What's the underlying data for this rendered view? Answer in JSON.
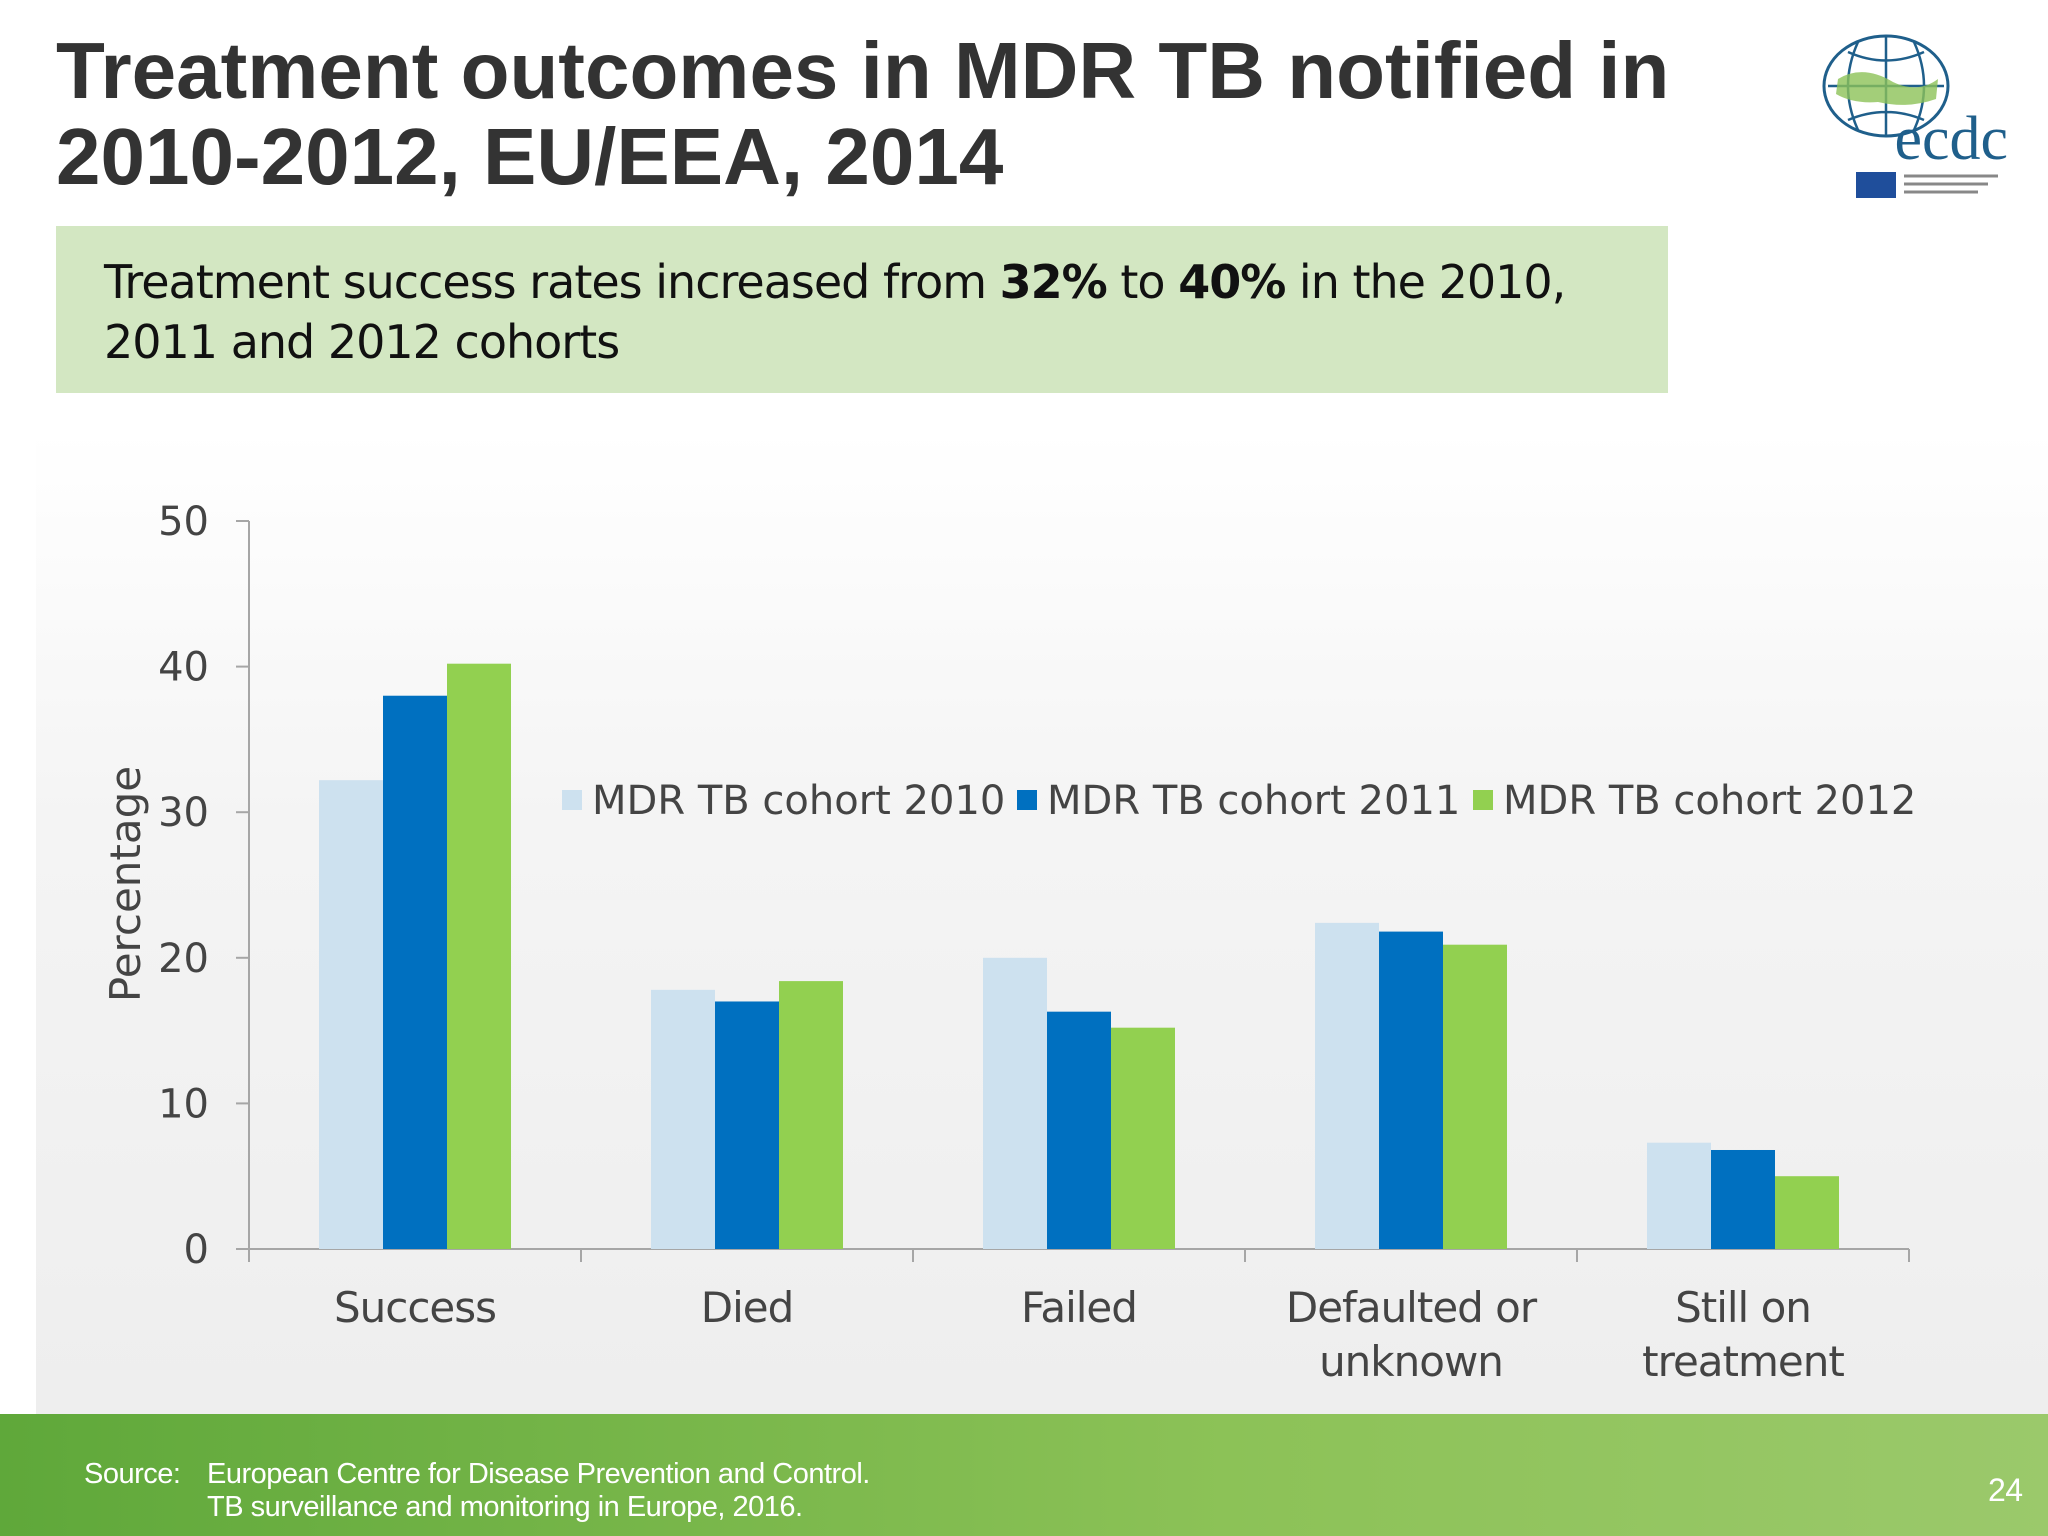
{
  "header": {
    "title": "Treatment outcomes in MDR TB notified in 2010-2012, EU/EEA, 2014",
    "logo": "ecdc"
  },
  "callout": {
    "parts": [
      {
        "text": "Treatment success rates increased from ",
        "bold": false
      },
      {
        "text": "32%",
        "bold": true
      },
      {
        "text": " to ",
        "bold": false
      },
      {
        "text": "40%",
        "bold": true
      },
      {
        "text": " in the 2010, 2011 and 2012 cohorts",
        "bold": false
      }
    ]
  },
  "chart_data": {
    "type": "bar",
    "y_label": "Percentage",
    "categories": [
      "Success",
      "Died",
      "Failed",
      "Defaulted or unknown",
      "Still on treatment"
    ],
    "series": [
      {
        "name": "MDR TB cohort 2010",
        "color": "#cde1ef",
        "values": [
          32.2,
          17.8,
          20,
          22.4,
          7.3
        ]
      },
      {
        "name": "MDR TB cohort 2011",
        "color": "#0070c0",
        "values": [
          38,
          17,
          16.3,
          21.8,
          6.8
        ]
      },
      {
        "name": "MDR TB cohort 2012",
        "color": "#92d050",
        "values": [
          40.2,
          18.4,
          15.2,
          20.9,
          5
        ]
      }
    ],
    "ylim": [
      0,
      50
    ],
    "yticks": [
      0,
      10,
      20,
      30,
      40,
      50
    ],
    "grid": false
  },
  "footer": {
    "source_label": "Source:",
    "source_lines": [
      "European Centre for Disease Prevention and Control.",
      "TB surveillance and monitoring in Europe, 2016."
    ],
    "page": "24"
  }
}
